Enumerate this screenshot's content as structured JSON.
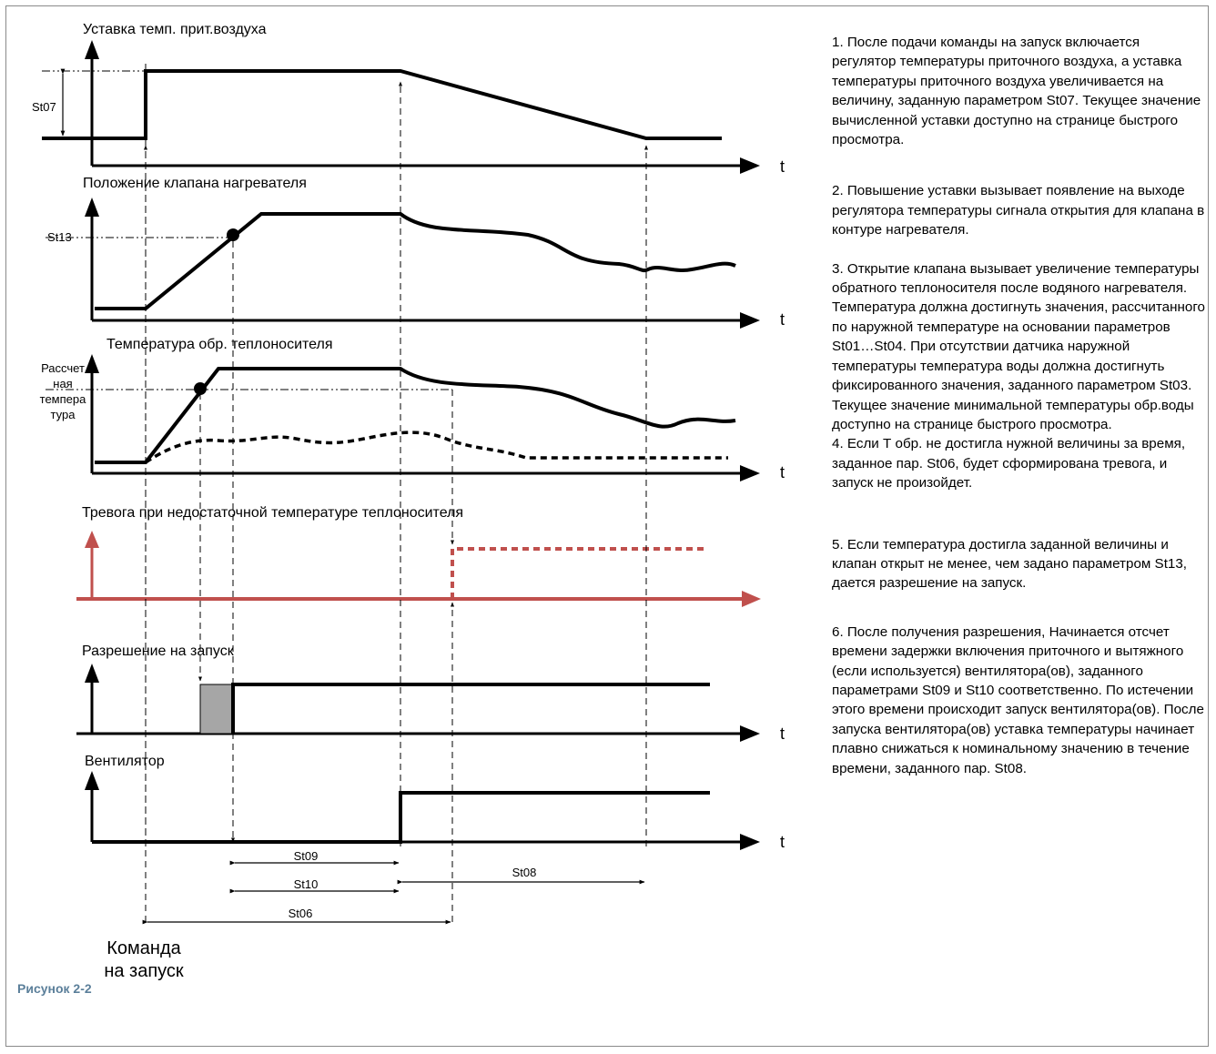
{
  "figure": {
    "caption": "Рисунок 2-2"
  },
  "charts": {
    "setpoint_title": "Уставка темп. прит.воздуха",
    "valve_title": "Положение клапана нагревателя",
    "return_title": "Температура обр. теплоносителя",
    "alarm_title": "Тревога при недостаточной температуре теплоносителя",
    "permit_title": "Разрешение на запуск",
    "fan_title": "Вентилятор",
    "time_axis_label": "t",
    "st07": "St07",
    "st13": "St13",
    "calc_temp_lines": [
      "Рассчет",
      "ная",
      "темпера",
      "тура"
    ],
    "st09": "St09",
    "st10": "St10",
    "st08": "St08",
    "st06": "St06",
    "start_command_lines": [
      "Команда",
      "на запуск"
    ]
  },
  "colors": {
    "line": "#000000",
    "alarm": "#c0504d",
    "permit_fill": "#a6a6a6",
    "caption": "#5b7f9a"
  },
  "notes": [
    "1. После подачи команды на запуск включается регулятор температуры приточного воздуха, а уставка температуры приточного воздуха увеличивается на величину, заданную параметром St07. Текущее значение вычисленной уставки доступно на странице быстрого просмотра.",
    "2. Повышение уставки вызывает появление на выходе регулятора температуры сигнала открытия для клапана в контуре нагревателя.",
    "3. Открытие клапана вызывает увеличение температуры обратного теплоносителя после водяного нагревателя. Температура должна достигнуть значения, рассчитанного по наружной температуре на основании параметров St01…St04. При отсутствии датчика наружной температуры температура воды должна достигнуть фиксированного значения, заданного параметром St03. Текущее значение минимальной температуры обр.воды доступно на странице быстрого просмотра.",
    "4. Если Т обр. не достигла нужной величины за время, заданное пар. St06, будет сформирована тревога, и запуск не произойдет.",
    "5. Если температура достигла заданной величины и клапан открыт не менее, чем задано параметром St13, дается разрешение  на запуск.",
    "6. После получения разрешения, Начинается отсчет времени задержки включения приточного и вытяжного (если используется) вентилятора(ов), заданного параметрами St09 и St10 соответственно.  По истечении этого времени происходит запуск вентилятора(ов). После запуска вентилятора(ов) уставка температуры начинает плавно снижаться к номинальному значению в течение времени, заданного пар. St08."
  ]
}
